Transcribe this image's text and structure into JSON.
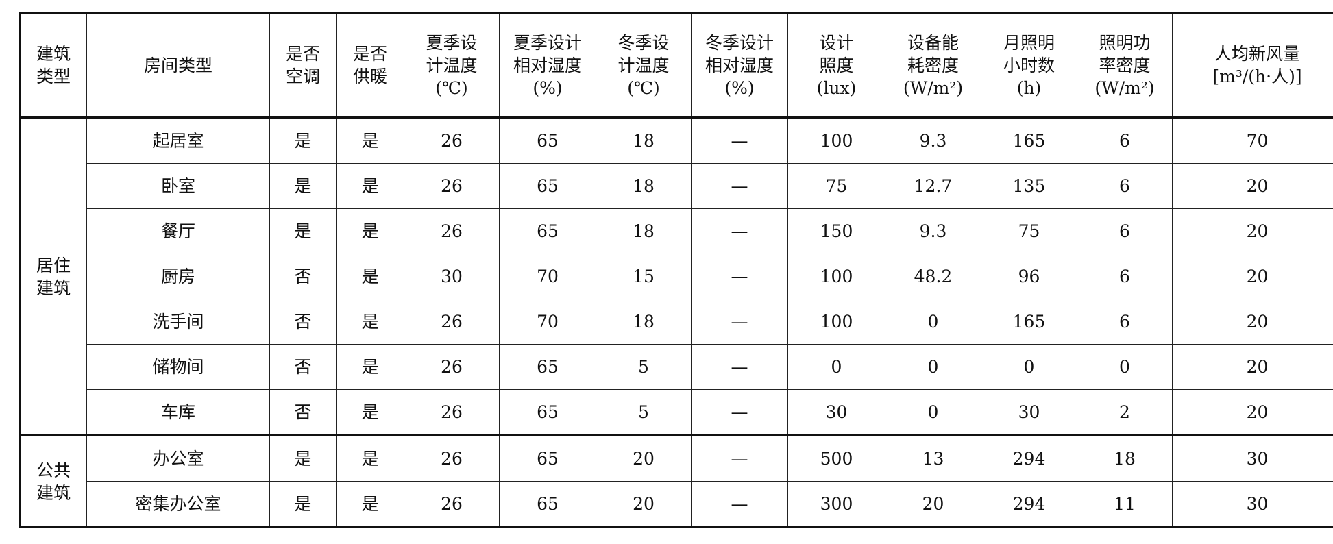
{
  "headers": [
    "建筑\n类型",
    "房间类型",
    "是否\n空调",
    "是否\n供暖",
    "夏季设\n计温度\n(℃)",
    "夏季设计\n相对湿度\n(%)",
    "冬季设\n计温度\n(℃)",
    "冬季设计\n相对湿度\n(%)",
    "设计\n照度\n(lux)",
    "设备能\n耗密度\n(W/m²)",
    "月照明\n小时数\n(h)",
    "照明功\n率密度\n(W/m²)",
    "人均新风量\n[m³/(h·人)]"
  ],
  "groups": [
    {
      "type": "居住\n建筑",
      "rows": [
        [
          "起居室",
          "是",
          "是",
          "26",
          "65",
          "18",
          "—",
          "100",
          "9.3",
          "165",
          "6",
          "70"
        ],
        [
          "卧室",
          "是",
          "是",
          "26",
          "65",
          "18",
          "—",
          "75",
          "12.7",
          "135",
          "6",
          "20"
        ],
        [
          "餐厅",
          "是",
          "是",
          "26",
          "65",
          "18",
          "—",
          "150",
          "9.3",
          "75",
          "6",
          "20"
        ],
        [
          "厨房",
          "否",
          "是",
          "30",
          "70",
          "15",
          "—",
          "100",
          "48.2",
          "96",
          "6",
          "20"
        ],
        [
          "洗手间",
          "否",
          "是",
          "26",
          "70",
          "18",
          "—",
          "100",
          "0",
          "165",
          "6",
          "20"
        ],
        [
          "储物间",
          "否",
          "是",
          "26",
          "65",
          "5",
          "—",
          "0",
          "0",
          "0",
          "0",
          "20"
        ],
        [
          "车库",
          "否",
          "是",
          "26",
          "65",
          "5",
          "—",
          "30",
          "0",
          "30",
          "2",
          "20"
        ]
      ]
    },
    {
      "type": "公共\n建筑",
      "rows": [
        [
          "办公室",
          "是",
          "是",
          "26",
          "65",
          "20",
          "—",
          "500",
          "13",
          "294",
          "18",
          "30"
        ],
        [
          "密集办公室",
          "是",
          "是",
          "26",
          "65",
          "20",
          "—",
          "300",
          "20",
          "294",
          "11",
          "30"
        ]
      ]
    }
  ]
}
